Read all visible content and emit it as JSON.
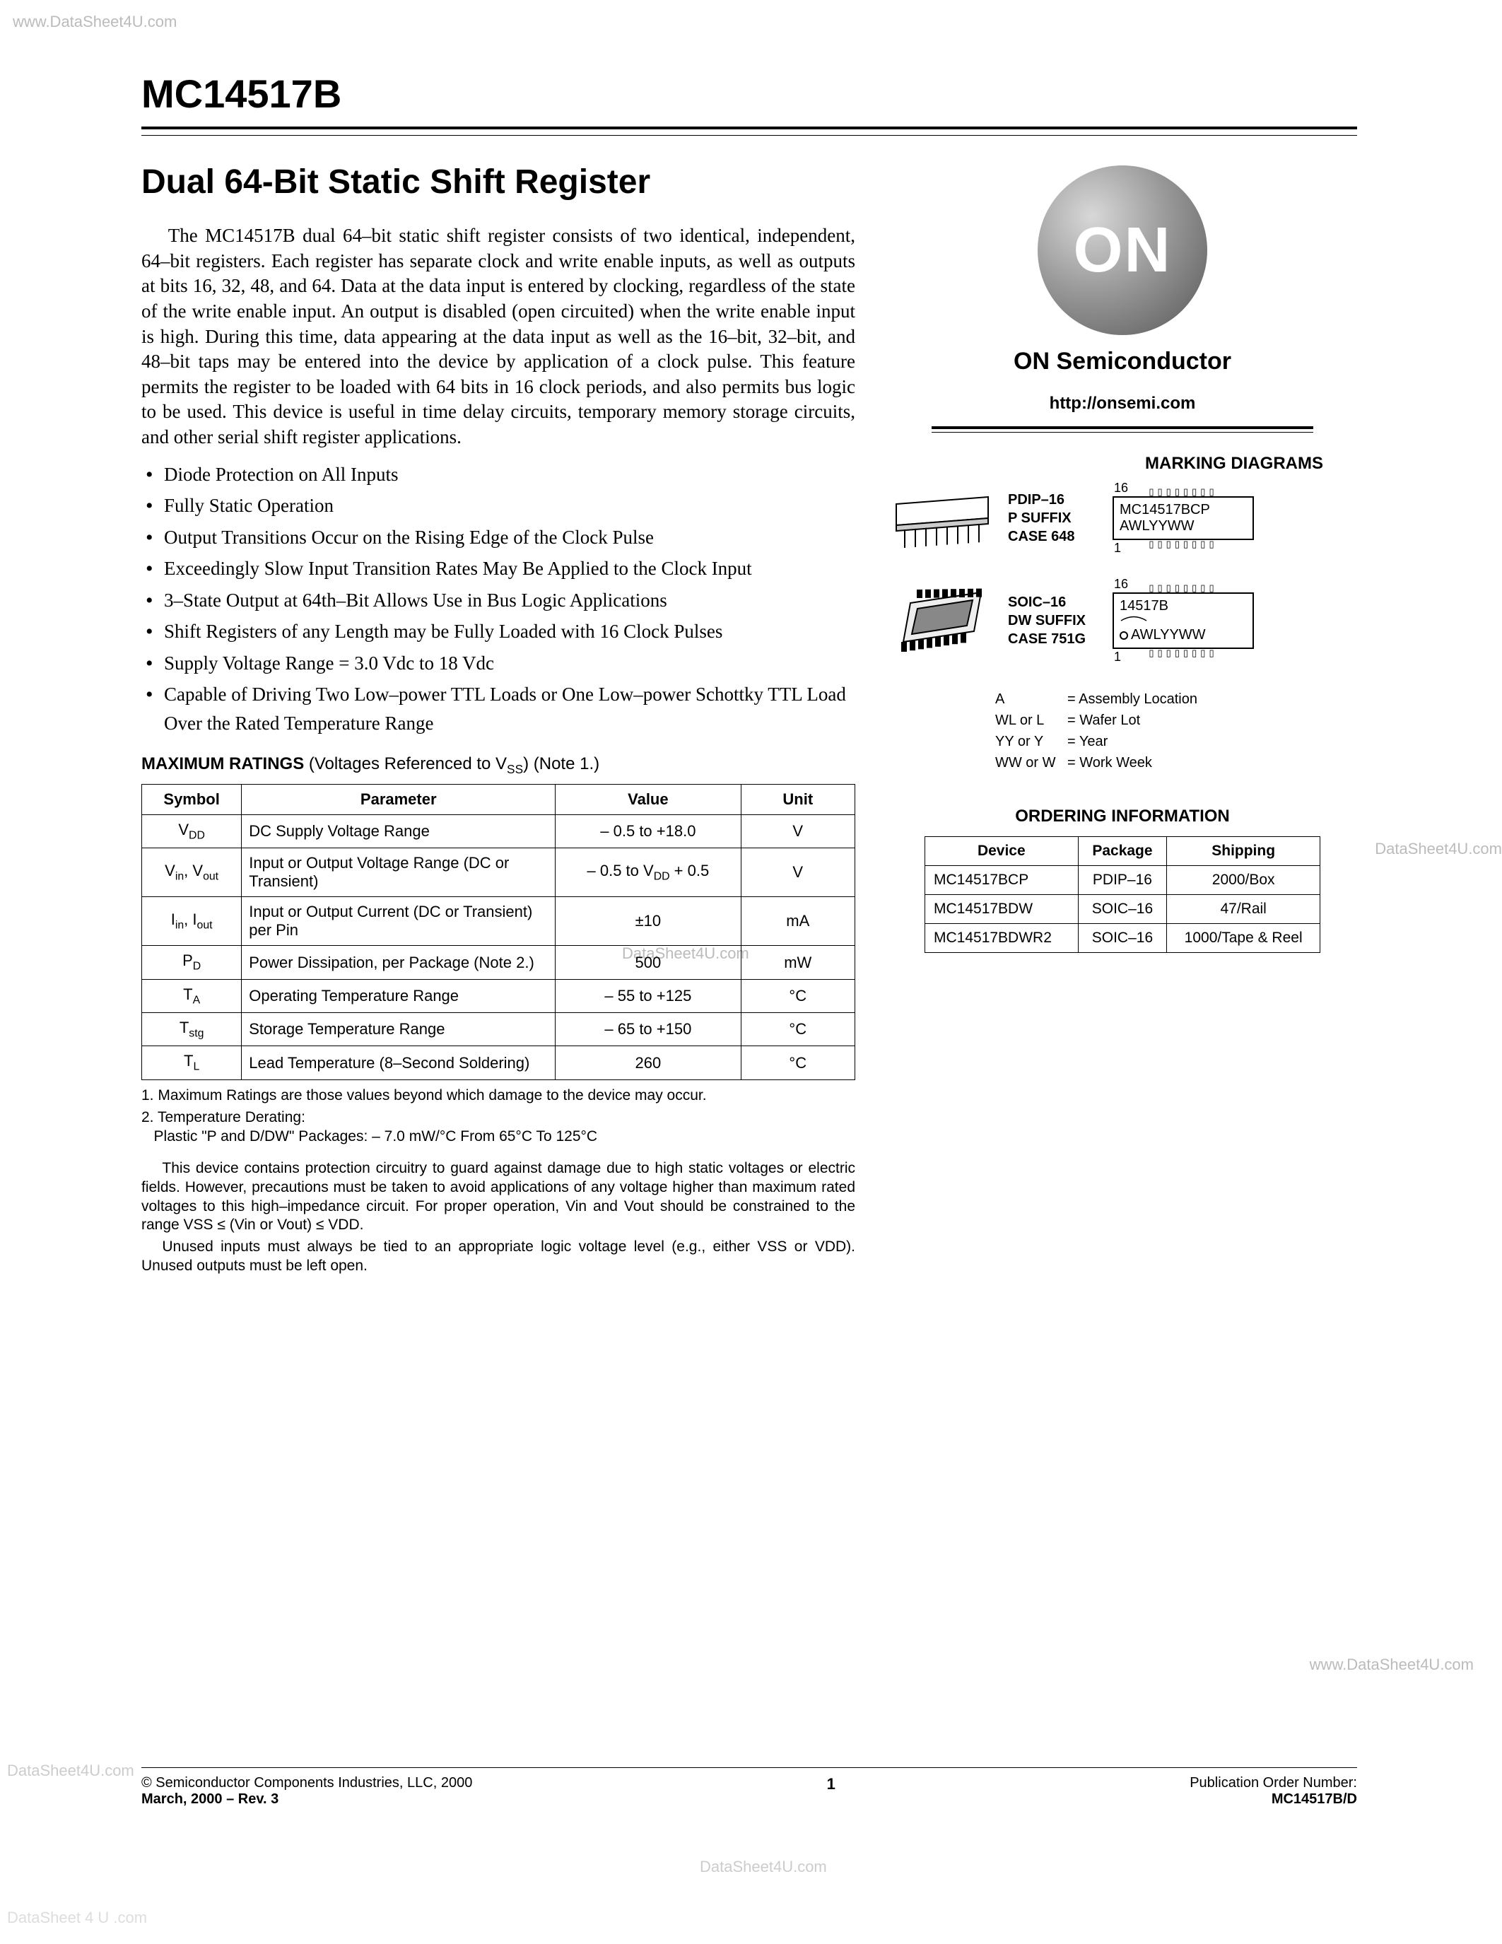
{
  "watermarks": {
    "tl": "www.DataSheet4U.com",
    "mr": "DataSheet4U.com",
    "mc": "DataSheet4U.com",
    "br": "www.DataSheet4U.com",
    "bl": "DataSheet4U.com",
    "bc": "DataSheet4U.com",
    "vb": "DataSheet 4 U .com"
  },
  "part_number": "MC14517B",
  "title": "Dual 64-Bit Static Shift Register",
  "description": "The MC14517B dual 64–bit static shift register consists of two identical, independent, 64–bit registers. Each register has separate clock and write enable inputs, as well as outputs at bits 16, 32, 48, and 64. Data at the data input is entered by clocking, regardless of the state of the write enable input. An output is disabled (open circuited) when the write enable input is high. During this time, data appearing at the data input as well as the 16–bit, 32–bit, and 48–bit taps may be entered into the device by application of a clock pulse. This feature permits the register to be loaded with 64 bits in 16 clock periods, and also permits bus logic to be used. This device is useful in time delay circuits, temporary memory storage circuits, and other serial shift register applications.",
  "features": [
    "Diode Protection on All Inputs",
    "Fully Static Operation",
    "Output Transitions Occur on the Rising Edge of the Clock Pulse",
    "Exceedingly Slow Input Transition Rates May Be Applied to the Clock Input",
    "3–State Output at 64th–Bit Allows Use in Bus Logic Applications",
    "Shift Registers of any Length may be Fully Loaded with 16 Clock Pulses",
    "Supply Voltage Range = 3.0 Vdc to 18 Vdc",
    "Capable of Driving Two Low–power TTL Loads or One Low–power Schottky TTL Load Over the Rated Temperature Range"
  ],
  "ratings_heading": "MAXIMUM RATINGS",
  "ratings_note_label": " (Voltages Referenced to V",
  "ratings_note_sub": "SS",
  "ratings_note_tail": ") (Note 1.)",
  "ratings": {
    "columns": [
      "Symbol",
      "Parameter",
      "Value",
      "Unit"
    ],
    "rows": [
      {
        "sym_html": "V<span class='sub'>DD</span>",
        "param": "DC Supply Voltage Range",
        "value": "– 0.5 to +18.0",
        "unit": "V"
      },
      {
        "sym_html": "V<span class='sub'>in</span>, V<span class='sub'>out</span>",
        "param": "Input or Output Voltage Range (DC or Transient)",
        "value": "– 0.5 to V<span class='sub'>DD</span> + 0.5",
        "unit": "V"
      },
      {
        "sym_html": "I<span class='sub'>in</span>, I<span class='sub'>out</span>",
        "param": "Input or Output Current (DC or Transient) per Pin",
        "value": "±10",
        "unit": "mA"
      },
      {
        "sym_html": "P<span class='sub'>D</span>",
        "param": "Power Dissipation, per Package (Note 2.)",
        "value": "500",
        "unit": "mW"
      },
      {
        "sym_html": "T<span class='sub'>A</span>",
        "param": "Operating Temperature Range",
        "value": "– 55 to +125",
        "unit": "°C"
      },
      {
        "sym_html": "T<span class='sub'>stg</span>",
        "param": "Storage Temperature Range",
        "value": "– 65 to +150",
        "unit": "°C"
      },
      {
        "sym_html": "T<span class='sub'>L</span>",
        "param": "Lead Temperature (8–Second Soldering)",
        "value": "260",
        "unit": "°C"
      }
    ],
    "col_widths_pct": [
      14,
      44,
      26,
      16
    ]
  },
  "notes": [
    "1. Maximum Ratings are those values beyond which damage to the device may occur.",
    "2. Temperature Derating:\n   Plastic \"P and D/DW\" Packages: – 7.0 mW/°C From 65°C To 125°C"
  ],
  "disclaimer": [
    "This device contains protection circuitry to guard against damage due to high static voltages or electric fields. However, precautions must be taken to avoid applications of any voltage higher than maximum rated voltages to this high–impedance circuit. For proper operation, Vin and Vout should be constrained to the range VSS ≤ (Vin or Vout) ≤ VDD.",
    "Unused inputs must always be tied to an appropriate logic voltage level (e.g., either VSS or VDD). Unused outputs must be left open."
  ],
  "logo": {
    "text": "ON",
    "bg_gradient": "#9a9a9a",
    "fg": "#ffffff"
  },
  "company": "ON Semiconductor",
  "url": "http://onsemi.com",
  "marking_title": "MARKING DIAGRAMS",
  "packages": [
    {
      "code": "PDIP–16",
      "suffix": "P SUFFIX",
      "case": "CASE 648",
      "marking_lines": [
        "MC14517BCP",
        "AWLYYWW"
      ],
      "pin_count": 16,
      "notch": false
    },
    {
      "code": "SOIC–16",
      "suffix": "DW SUFFIX",
      "case": "CASE 751G",
      "marking_lines": [
        "14517B",
        "AWLYYWW"
      ],
      "pin_count": 16,
      "notch": true
    }
  ],
  "legend": [
    [
      "A",
      "= Assembly Location"
    ],
    [
      "WL or L",
      "= Wafer Lot"
    ],
    [
      "YY or Y",
      "= Year"
    ],
    [
      "WW or W",
      "= Work Week"
    ]
  ],
  "ordering_title": "ORDERING INFORMATION",
  "ordering": {
    "columns": [
      "Device",
      "Package",
      "Shipping"
    ],
    "rows": [
      [
        "MC14517BCP",
        "PDIP–16",
        "2000/Box"
      ],
      [
        "MC14517BDW",
        "SOIC–16",
        "47/Rail"
      ],
      [
        "MC14517BDWR2",
        "SOIC–16",
        "1000/Tape & Reel"
      ]
    ]
  },
  "footer": {
    "copyright": "©  Semiconductor Components Industries, LLC, 2000",
    "date_rev": "March, 2000 – Rev. 3",
    "page": "1",
    "pub_label": "Publication Order Number:",
    "pub_num": "MC14517B/D"
  },
  "colors": {
    "text": "#000000",
    "bg": "#ffffff",
    "watermark": "#bbbbbb",
    "rule": "#000000"
  }
}
